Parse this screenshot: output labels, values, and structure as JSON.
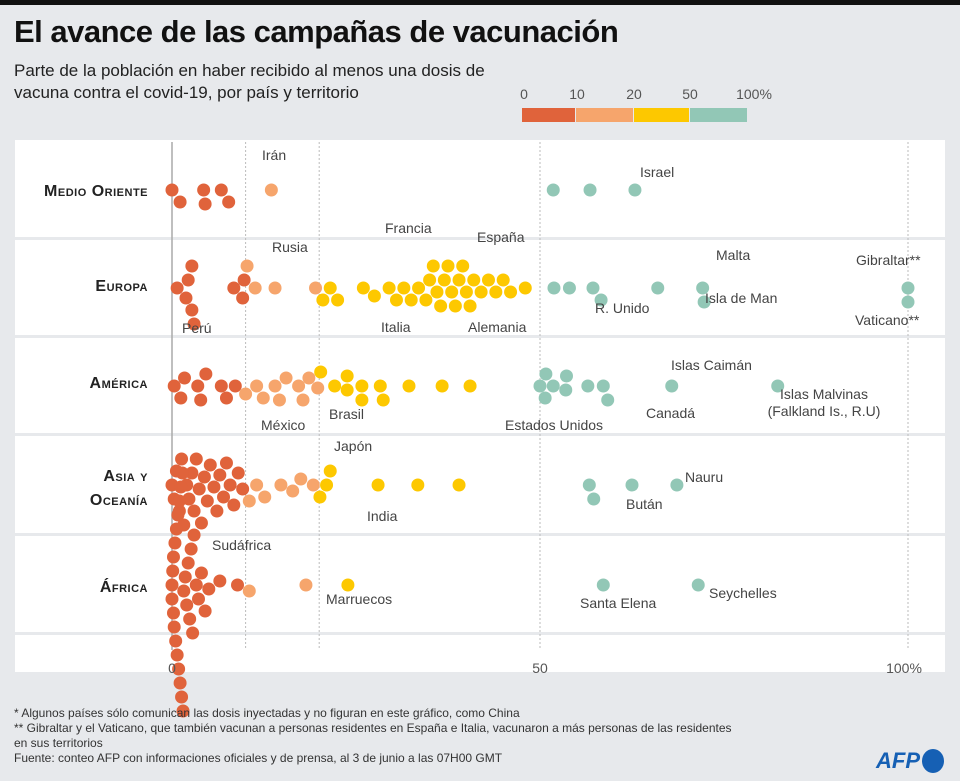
{
  "header": {
    "title": "El avance de las campañas de vacunación",
    "subtitle": "Parte de la población en haber recibido al menos una dosis de vacuna contra el covid-19, por país y territorio"
  },
  "legend": {
    "labels": [
      "0",
      "10",
      "20",
      "50",
      "100%"
    ],
    "colors": [
      "#e0633b",
      "#f6a56c",
      "#fdc800",
      "#92c7b6"
    ]
  },
  "chart_data": {
    "type": "scatter",
    "title": "El avance de las campañas de vacunación",
    "xlim": [
      0,
      100
    ],
    "xticks": [
      "0",
      "50",
      "100%"
    ],
    "gridlines": [
      10,
      20,
      50,
      100
    ],
    "bins": [
      0,
      10,
      20,
      50,
      100
    ],
    "categories": [
      "Medio Oriente",
      "Europa",
      "América",
      "Asia y Oceanía",
      "África"
    ],
    "series": [
      {
        "name": "Medio Oriente",
        "values": [
          0,
          1.1,
          4.3,
          4.5,
          6.7,
          7.7,
          13.5,
          51.8,
          56.8,
          62.9
        ],
        "labels": [
          {
            "text": "Irán",
            "value": 4.3
          },
          {
            "text": "Israel",
            "value": 62.9
          }
        ]
      },
      {
        "name": "Europa",
        "values": [
          0.7,
          1.9,
          2.2,
          2.7,
          2.7,
          3,
          8.4,
          9.6,
          9.8,
          10.2,
          11.3,
          14,
          19.5,
          20.5,
          21.5,
          22.5,
          26,
          27.5,
          29.5,
          30.5,
          31.5,
          32.5,
          33.5,
          34.5,
          35,
          35.5,
          36,
          36.5,
          37,
          37.5,
          38,
          38.5,
          39,
          39.5,
          40,
          40.5,
          41,
          42,
          43,
          44,
          45,
          46,
          48,
          51.9,
          54,
          57.2,
          58.3,
          66,
          72.1,
          72.3,
          100,
          100
        ],
        "labels": [
          {
            "text": "Rusia",
            "value": 11.3
          },
          {
            "text": "Francia",
            "value": 37.5
          },
          {
            "text": "España",
            "value": 44
          },
          {
            "text": "Italia",
            "value": 39
          },
          {
            "text": "Alemania",
            "value": 42
          },
          {
            "text": "R. Unido",
            "value": 58.3
          },
          {
            "text": "Malta",
            "value": 72.1
          },
          {
            "text": "Isla de Man",
            "value": 72.3
          },
          {
            "text": "Gibraltar**",
            "value": 100
          },
          {
            "text": "Vaticano**",
            "value": 100
          }
        ]
      },
      {
        "name": "América",
        "values": [
          0.3,
          1.2,
          1.7,
          3.5,
          3.9,
          4.6,
          6.7,
          7.4,
          8.6,
          10,
          11.5,
          12.4,
          14,
          14.6,
          15.5,
          17.2,
          17.8,
          18.6,
          19.8,
          20.2,
          22.1,
          23.8,
          23.8,
          25.8,
          25.8,
          28.3,
          28.7,
          32.2,
          36.7,
          40.5,
          50,
          50.7,
          50.8,
          51.8,
          53.5,
          53.6,
          56.5,
          58.6,
          59.2,
          67.9,
          82.3
        ],
        "labels": [
          {
            "text": "Perú",
            "value": 7.4
          },
          {
            "text": "México",
            "value": 17.2
          },
          {
            "text": "Brasil",
            "value": 20.2
          },
          {
            "text": "Estados Unidos",
            "value": 50.8
          },
          {
            "text": "Canadá",
            "value": 59.2
          },
          {
            "text": "Islas Caimán",
            "value": 67.9
          },
          {
            "text": "Islas Malvinas (Falkland Is., R.U)",
            "value": 82.3
          }
        ]
      },
      {
        "name": "Asia y Oceanía",
        "values": [
          0,
          0.3,
          0.6,
          1,
          1.3,
          1.6,
          2,
          2.3,
          2.7,
          3,
          3.3,
          3.7,
          4,
          4.4,
          4.8,
          5.2,
          5.7,
          6.1,
          6.5,
          7,
          7.4,
          7.9,
          8.4,
          9,
          9.6,
          10.5,
          11.5,
          12.6,
          14.8,
          16.4,
          17.5,
          19.2,
          20.1,
          21,
          21.5,
          28,
          33.4,
          39,
          56.7,
          57.3,
          62.5,
          68.6
        ],
        "labels": [
          {
            "text": "Japón",
            "value": 17.5
          },
          {
            "text": "India",
            "value": 21.5
          },
          {
            "text": "Bután",
            "value": 62.5
          },
          {
            "text": "Nauru",
            "value": 68.6
          }
        ]
      },
      {
        "name": "África",
        "values": [
          0,
          0,
          0.1,
          0.2,
          0.2,
          0.3,
          0.4,
          0.5,
          0.6,
          0.7,
          0.8,
          0.9,
          1,
          1.1,
          1.2,
          1.3,
          1.4,
          1.5,
          1.6,
          1.8,
          2,
          2.2,
          2.4,
          2.6,
          2.8,
          3,
          3.3,
          3.6,
          4,
          4.5,
          5,
          6.5,
          8.9,
          10.5,
          18.2,
          23.9,
          58.6,
          71.5
        ],
        "labels": [
          {
            "text": "Sudáfrica",
            "value": 1.5
          },
          {
            "text": "Marruecos",
            "value": 23.9
          },
          {
            "text": "Santa Elena",
            "value": 58.6
          },
          {
            "text": "Seychelles",
            "value": 71.5
          }
        ]
      }
    ]
  },
  "footer": {
    "note1": "* Algunos países sólo comunican las dosis inyectadas y no figuran en este gráfico, como China",
    "note2": "** Gibraltar y el Vaticano, que también vacunan a personas residentes en España e Italia, vacunaron a más personas de las residentes en sus territorios",
    "source": "Fuente: conteo AFP con informaciones oficiales y de prensa, al 3 de junio a las 07H00 GMT",
    "logo": "AFP"
  }
}
